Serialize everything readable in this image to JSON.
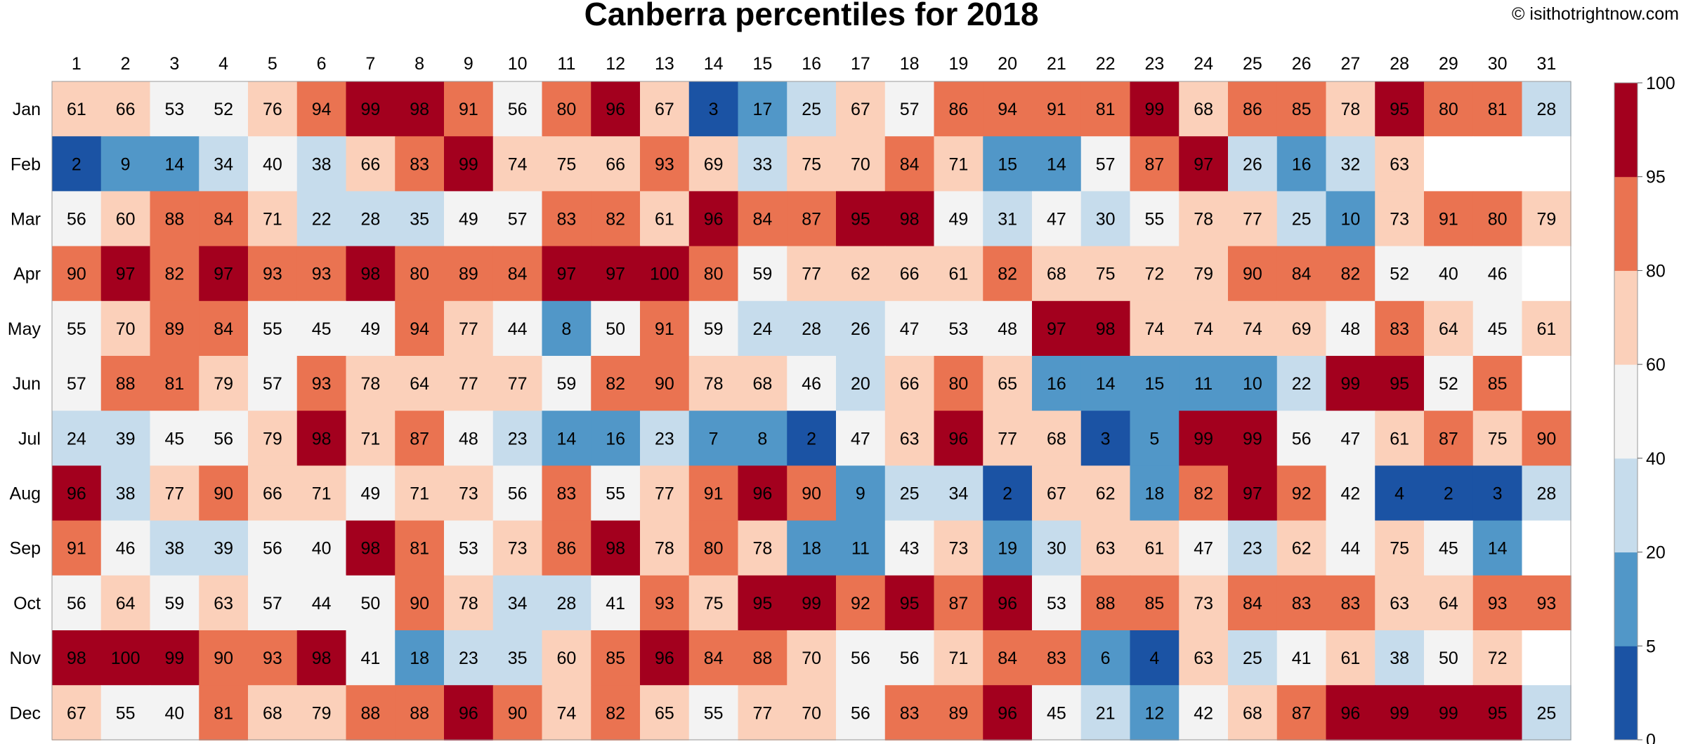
{
  "chart_data": {
    "type": "heatmap",
    "title": "Canberra percentiles for 2018",
    "credit": "© isithotrightnow.com",
    "x": [
      "1",
      "2",
      "3",
      "4",
      "5",
      "6",
      "7",
      "8",
      "9",
      "10",
      "11",
      "12",
      "13",
      "14",
      "15",
      "16",
      "17",
      "18",
      "19",
      "20",
      "21",
      "22",
      "23",
      "24",
      "25",
      "26",
      "27",
      "28",
      "29",
      "30",
      "31"
    ],
    "y": [
      "Jan",
      "Feb",
      "Mar",
      "Apr",
      "May",
      "Jun",
      "Jul",
      "Aug",
      "Sep",
      "Oct",
      "Nov",
      "Dec"
    ],
    "values": [
      [
        61,
        66,
        53,
        52,
        76,
        94,
        99,
        98,
        91,
        56,
        80,
        96,
        67,
        3,
        17,
        25,
        67,
        57,
        86,
        94,
        91,
        81,
        99,
        68,
        86,
        85,
        78,
        95,
        80,
        81,
        28
      ],
      [
        2,
        9,
        14,
        34,
        40,
        38,
        66,
        83,
        99,
        74,
        75,
        66,
        93,
        69,
        33,
        75,
        70,
        84,
        71,
        15,
        14,
        57,
        87,
        97,
        26,
        16,
        32,
        63,
        null,
        null,
        null
      ],
      [
        56,
        60,
        88,
        84,
        71,
        22,
        28,
        35,
        49,
        57,
        83,
        82,
        61,
        96,
        84,
        87,
        95,
        98,
        49,
        31,
        47,
        30,
        55,
        78,
        77,
        25,
        10,
        73,
        91,
        80,
        79
      ],
      [
        90,
        97,
        82,
        97,
        93,
        93,
        98,
        80,
        89,
        84,
        97,
        97,
        100,
        80,
        59,
        77,
        62,
        66,
        61,
        82,
        68,
        75,
        72,
        79,
        90,
        84,
        82,
        52,
        40,
        46,
        null
      ],
      [
        55,
        70,
        89,
        84,
        55,
        45,
        49,
        94,
        77,
        44,
        8,
        50,
        91,
        59,
        24,
        28,
        26,
        47,
        53,
        48,
        97,
        98,
        74,
        74,
        74,
        69,
        48,
        83,
        64,
        45,
        61
      ],
      [
        57,
        88,
        81,
        79,
        57,
        93,
        78,
        64,
        77,
        77,
        59,
        82,
        90,
        78,
        68,
        46,
        20,
        66,
        80,
        65,
        16,
        14,
        15,
        11,
        10,
        22,
        99,
        95,
        52,
        85,
        null
      ],
      [
        24,
        39,
        45,
        56,
        79,
        98,
        71,
        87,
        48,
        23,
        14,
        16,
        23,
        7,
        8,
        2,
        47,
        63,
        96,
        77,
        68,
        3,
        5,
        99,
        99,
        56,
        47,
        61,
        87,
        75,
        90
      ],
      [
        96,
        38,
        77,
        90,
        66,
        71,
        49,
        71,
        73,
        56,
        83,
        55,
        77,
        91,
        96,
        90,
        9,
        25,
        34,
        2,
        67,
        62,
        18,
        82,
        97,
        92,
        42,
        4,
        2,
        3,
        28
      ],
      [
        91,
        46,
        38,
        39,
        56,
        40,
        98,
        81,
        53,
        73,
        86,
        98,
        78,
        80,
        78,
        18,
        11,
        43,
        73,
        19,
        30,
        63,
        61,
        47,
        23,
        62,
        44,
        75,
        45,
        14,
        null
      ],
      [
        56,
        64,
        59,
        63,
        57,
        44,
        50,
        90,
        78,
        34,
        28,
        41,
        93,
        75,
        95,
        99,
        92,
        95,
        87,
        96,
        53,
        88,
        85,
        73,
        84,
        83,
        83,
        63,
        64,
        93,
        93
      ],
      [
        98,
        100,
        99,
        90,
        93,
        98,
        41,
        18,
        23,
        35,
        60,
        85,
        96,
        84,
        88,
        70,
        56,
        56,
        71,
        84,
        83,
        6,
        4,
        63,
        25,
        41,
        61,
        38,
        50,
        72,
        null
      ],
      [
        67,
        55,
        40,
        81,
        68,
        79,
        88,
        88,
        96,
        90,
        74,
        82,
        65,
        55,
        77,
        70,
        56,
        83,
        89,
        96,
        45,
        21,
        12,
        42,
        68,
        87,
        96,
        99,
        99,
        95,
        25
      ]
    ],
    "colorbar": {
      "breaks": [
        0,
        5,
        20,
        40,
        60,
        80,
        95,
        100
      ],
      "colors": [
        "#1b53a4",
        "#5197c8",
        "#c6dcec",
        "#f3f3f3",
        "#fbd0ba",
        "#ea7351",
        "#a3001e"
      ],
      "tick_labels": [
        "0",
        "5",
        "20",
        "40",
        "60",
        "80",
        "95",
        "100"
      ]
    },
    "empty_color": "#ffffff",
    "legend_position": "right",
    "grid": false
  }
}
